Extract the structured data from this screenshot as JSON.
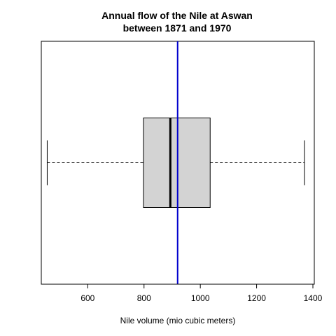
{
  "chart_data": {
    "type": "boxplot",
    "orientation": "horizontal",
    "title_lines": [
      "Annual flow of the Nile at Aswan",
      "between 1871 and 1970"
    ],
    "xlabel": "Nile volume (mio cubic meters)",
    "ylabel": "",
    "xlim": [
      435,
      1405
    ],
    "x_ticks": [
      600,
      800,
      1000,
      1200,
      1400
    ],
    "x_tick_labels": [
      "600",
      "800",
      "1000",
      "1200",
      "1400"
    ],
    "box": {
      "min": 456,
      "q1": 798,
      "median": 893.5,
      "q3": 1035,
      "max": 1370,
      "fill": "#d3d3d3"
    },
    "reference_line": {
      "value": 919.35,
      "color": "#0000cd"
    },
    "grid": false,
    "legend": "none"
  }
}
